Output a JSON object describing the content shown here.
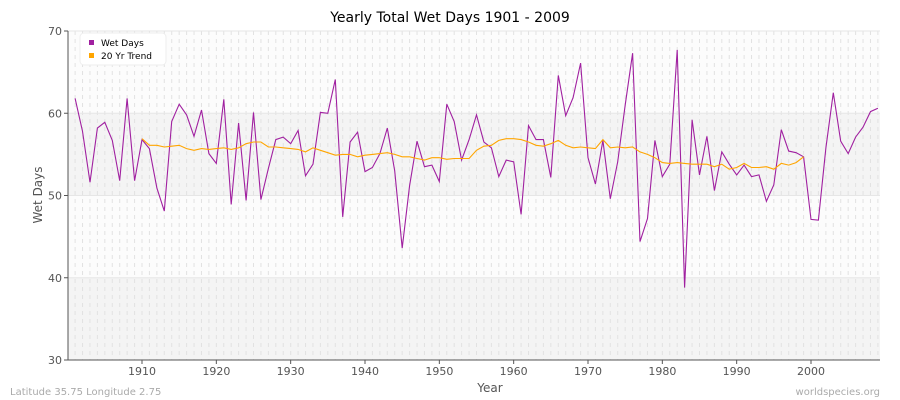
{
  "chart_data": {
    "type": "line",
    "title": "Yearly Total Wet Days 1901 - 2009",
    "xlabel": "Year",
    "ylabel": "Wet Days",
    "xlim": [
      1901,
      2009
    ],
    "ylim": [
      30,
      70
    ],
    "xticks": [
      1910,
      1920,
      1930,
      1940,
      1950,
      1960,
      1970,
      1980,
      1990,
      2000
    ],
    "yticks": [
      30,
      40,
      50,
      60,
      70
    ],
    "grid": true,
    "legend": "top-left",
    "series": [
      {
        "name": "Wet Days",
        "color": "#a020a0",
        "x_start": 1901,
        "values": [
          61.8,
          57.8,
          51.6,
          58.2,
          58.9,
          56.7,
          51.8,
          61.8,
          51.8,
          56.8,
          55.7,
          50.9,
          48.1,
          59.0,
          61.1,
          59.8,
          57.2,
          60.4,
          55.1,
          53.9,
          61.7,
          48.9,
          58.8,
          49.4,
          60.1,
          49.5,
          53.3,
          56.8,
          57.1,
          56.3,
          57.9,
          52.4,
          53.8,
          60.1,
          60.0,
          64.1,
          47.4,
          56.5,
          57.7,
          52.9,
          53.4,
          55.1,
          58.2,
          53.0,
          43.6,
          51.2,
          56.6,
          53.5,
          53.7,
          51.7,
          61.1,
          59.0,
          54.3,
          56.8,
          59.8,
          56.5,
          55.8,
          52.3,
          54.3,
          54.1,
          47.7,
          58.5,
          56.8,
          56.8,
          52.2,
          64.6,
          59.7,
          61.9,
          66.1,
          54.6,
          51.4,
          56.7,
          49.6,
          54.1,
          61.0,
          67.3,
          44.4,
          47.2,
          56.7,
          52.3,
          53.8,
          67.7,
          38.8,
          59.2,
          52.5,
          57.2,
          50.6,
          55.3,
          53.8,
          52.5,
          53.7,
          52.3,
          52.5,
          49.3,
          51.3,
          58.0,
          55.4,
          55.2,
          54.7,
          47.1,
          47.0,
          55.8,
          62.5,
          56.6,
          55.1,
          57.1,
          58.3,
          60.2,
          60.6
        ]
      },
      {
        "name": "20 Yr Trend",
        "color": "#ffa500",
        "x_start": 1910,
        "values": [
          56.9,
          56.1,
          56.1,
          55.9,
          56.0,
          56.1,
          55.7,
          55.5,
          55.7,
          55.6,
          55.7,
          55.8,
          55.6,
          55.8,
          56.3,
          56.5,
          56.5,
          55.9,
          55.9,
          55.8,
          55.7,
          55.6,
          55.3,
          55.8,
          55.5,
          55.2,
          54.9,
          55.0,
          55.0,
          54.7,
          54.9,
          55.0,
          55.1,
          55.2,
          55.0,
          54.7,
          54.7,
          54.5,
          54.3,
          54.6,
          54.6,
          54.4,
          54.5,
          54.5,
          54.5,
          55.5,
          56.0,
          56.1,
          56.7,
          56.9,
          56.9,
          56.8,
          56.5,
          56.1,
          56.0,
          56.3,
          56.7,
          56.1,
          55.8,
          55.9,
          55.8,
          55.7,
          56.8,
          55.8,
          55.9,
          55.8,
          55.9,
          55.3,
          55.0,
          54.6,
          54.0,
          53.9,
          54.0,
          53.9,
          53.8,
          53.8,
          53.8,
          53.5,
          53.8,
          53.2,
          53.4,
          53.9,
          53.4,
          53.4,
          53.5,
          53.2,
          53.9,
          53.7,
          54.0,
          54.7
        ]
      }
    ]
  },
  "footer": {
    "left": "Latitude 35.75 Longitude 2.75",
    "right": "worldspecies.org"
  }
}
